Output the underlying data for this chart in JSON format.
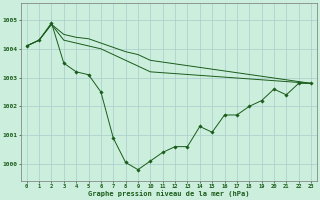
{
  "title": "Graphe pression niveau de la mer (hPa)",
  "background_color": "#cceedd",
  "grid_color": "#aacccc",
  "line_color": "#1a5c1a",
  "marker_color": "#1a5c1a",
  "xlim": [
    -0.5,
    23.5
  ],
  "ylim": [
    999.4,
    1005.6
  ],
  "yticks": [
    1000,
    1001,
    1002,
    1003,
    1004,
    1005
  ],
  "xticks": [
    0,
    1,
    2,
    3,
    4,
    5,
    6,
    7,
    8,
    9,
    10,
    11,
    12,
    13,
    14,
    15,
    16,
    17,
    18,
    19,
    20,
    21,
    22,
    23
  ],
  "series1_x": [
    0,
    1,
    2,
    3,
    4,
    5,
    6,
    7,
    8,
    9,
    10,
    11,
    12,
    13,
    14,
    15,
    16,
    17,
    18,
    19,
    20,
    21,
    22,
    23
  ],
  "series1_y": [
    1004.1,
    1004.3,
    1004.9,
    1003.5,
    1003.2,
    1003.1,
    1002.5,
    1000.9,
    1000.05,
    999.8,
    1000.1,
    1000.4,
    1000.6,
    1000.6,
    1001.3,
    1001.1,
    1001.7,
    1001.7,
    1002.0,
    1002.2,
    1002.6,
    1002.4,
    1002.8,
    1002.8
  ],
  "series2_x": [
    0,
    1,
    2,
    3,
    4,
    5,
    6,
    7,
    8,
    9,
    10,
    23
  ],
  "series2_y": [
    1004.1,
    1004.3,
    1004.85,
    1004.5,
    1004.4,
    1004.35,
    1004.2,
    1004.05,
    1003.9,
    1003.8,
    1003.6,
    1002.8
  ],
  "series3_x": [
    0,
    1,
    2,
    3,
    4,
    5,
    6,
    7,
    8,
    9,
    10,
    23
  ],
  "series3_y": [
    1004.1,
    1004.3,
    1004.85,
    1004.3,
    1004.2,
    1004.1,
    1004.0,
    1003.8,
    1003.6,
    1003.4,
    1003.2,
    1002.8
  ]
}
